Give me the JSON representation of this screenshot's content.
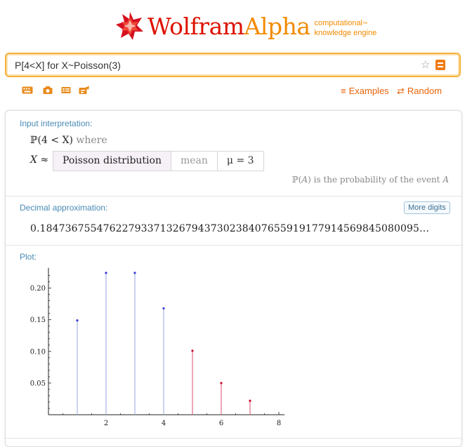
{
  "header": {
    "logo_wolfram": "Wolfram",
    "logo_alpha": "Alpha",
    "tagline_1": "computational",
    "tagline_tm": "™",
    "tagline_2": "knowledge engine"
  },
  "search": {
    "query": "P[4<X] for X~Poisson(3)"
  },
  "toolbar": {
    "icons": [
      "keyboard-icon",
      "camera-icon",
      "table-icon",
      "random-input-icon"
    ],
    "examples_label": "Examples",
    "random_label": "Random"
  },
  "pods": {
    "input": {
      "title": "Input interpretation:",
      "prob_expr": "ℙ(4 < X)",
      "where": "where",
      "x_symbol": "X ≈",
      "dist_name": "Poisson distribution",
      "param_label": "mean",
      "param_value": "μ = 3",
      "note_pre": "ℙ(",
      "note_var": "A",
      "note_mid": ") is the probability of the event ",
      "note_var2": "A"
    },
    "decimal": {
      "title": "Decimal approximation:",
      "more_button": "More digits",
      "value": "0.184736755476227933713267943730238407655919177914569845080095…"
    },
    "plot": {
      "title": "Plot:"
    }
  },
  "colors": {
    "accent": "#e8640c",
    "pod_title": "#4a8bb5",
    "stem_blue": "#aab4e6",
    "stem_red": "#e36a86",
    "point_blue": "#3b3bd6",
    "point_red": "#c8102e"
  },
  "chart_data": {
    "type": "scatter",
    "title": "",
    "xlabel": "",
    "ylabel": "",
    "xlim": [
      0,
      8
    ],
    "ylim": [
      0,
      0.23
    ],
    "x_ticks": [
      "2",
      "4",
      "6",
      "8"
    ],
    "y_ticks": [
      "0.05",
      "0.10",
      "0.15",
      "0.20"
    ],
    "series": [
      {
        "x": [
          1,
          2,
          3,
          4
        ],
        "y": [
          0.149,
          0.224,
          0.224,
          0.168
        ]
      },
      {
        "x": [
          5,
          6,
          7
        ],
        "y": [
          0.101,
          0.05,
          0.022
        ]
      }
    ]
  }
}
